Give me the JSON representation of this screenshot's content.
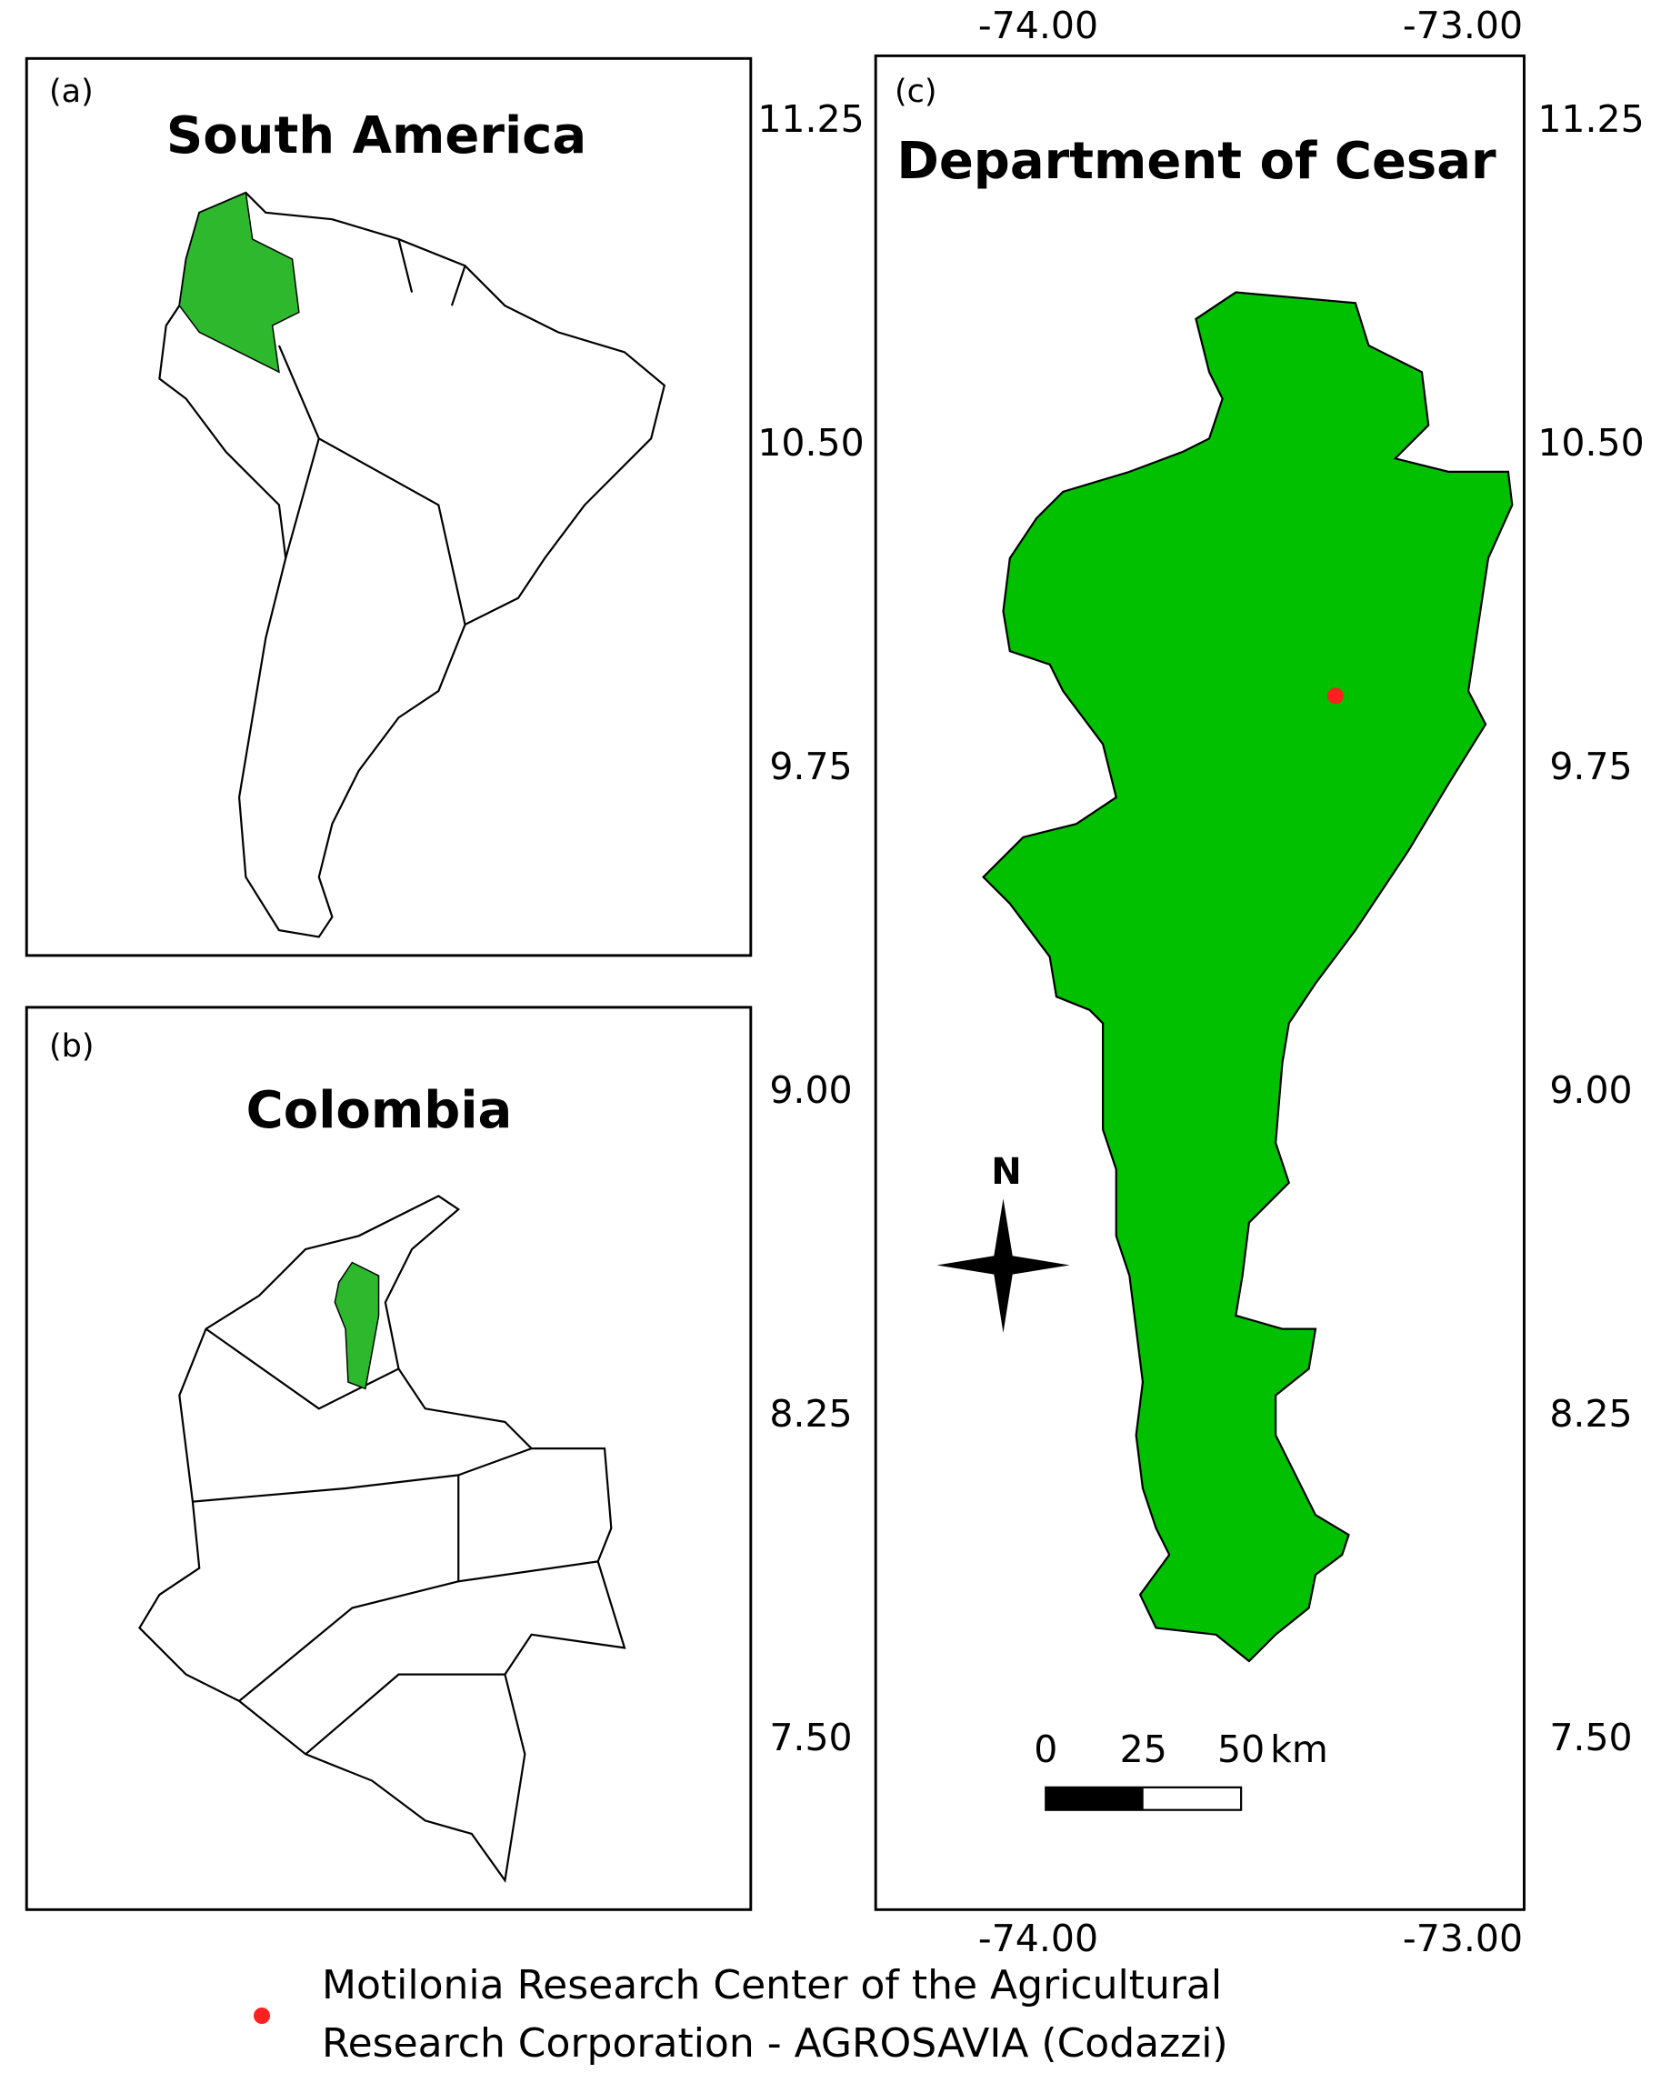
{
  "panels": [
    {
      "label": "(a)",
      "title": "South America"
    },
    {
      "label": "(b)",
      "title": "Colombia"
    },
    {
      "label": "(c)",
      "title": "Department of Cesar",
      "north": "N",
      "scale_bar": {
        "ticks": [
          0,
          25,
          50
        ],
        "unit": "km"
      }
    }
  ],
  "latitude_ticks": [
    11.25,
    {
      "value": 10.5,
      "label": "10.50"
    },
    9.75,
    {
      "value": 9,
      "label": "9.00"
    },
    8.25,
    {
      "value": 7.5,
      "label": "7.50"
    }
  ],
  "longitude_ticks": [
    {
      "value": -74,
      "label": "-74.00"
    },
    {
      "value": -73,
      "label": "-73.00"
    }
  ],
  "site": {
    "lon": -73.3,
    "lat": 9.92,
    "color": "#ff2020"
  },
  "legend": {
    "lines": [
      "Motilonia Research Center of the Agricultural",
      "Research Corporation - AGROSAVIA (Codazzi)"
    ]
  }
}
